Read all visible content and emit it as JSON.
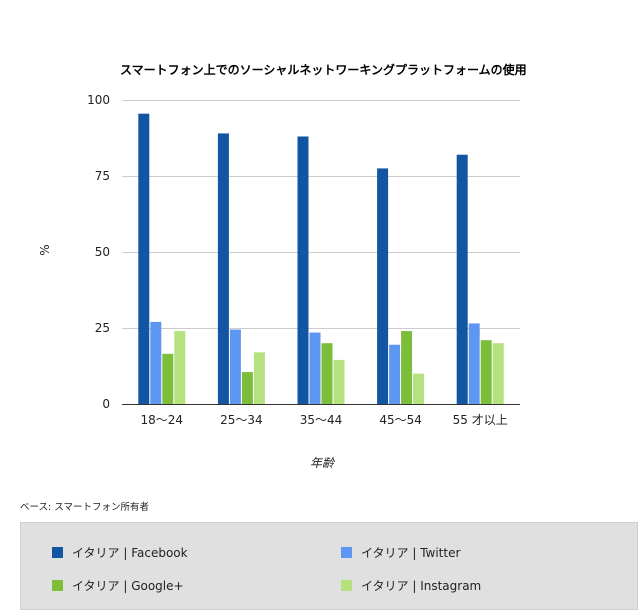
{
  "chart_data": {
    "type": "bar",
    "title": "スマートフォン上でのソーシャルネットワーキングプラットフォームの使用",
    "xlabel": "年齢",
    "ylabel": "%",
    "ylim": [
      0,
      100
    ],
    "yticks": [
      0,
      25,
      50,
      75,
      100
    ],
    "grid": true,
    "legend_position": "bottom",
    "categories": [
      "18〜24",
      "25〜34",
      "35〜44",
      "45〜54",
      "55 才以上"
    ],
    "series": [
      {
        "name": "イタリア | Facebook",
        "color": "#1155a3",
        "values": [
          95.5,
          89,
          88,
          77.5,
          82
        ]
      },
      {
        "name": "イタリア | Twitter",
        "color": "#5e97f2",
        "values": [
          27,
          24.5,
          23.5,
          19.5,
          26.5
        ]
      },
      {
        "name": "イタリア | Google+",
        "color": "#7cbd3a",
        "values": [
          16.5,
          10.5,
          20,
          24,
          21
        ]
      },
      {
        "name": "イタリア | Instagram",
        "color": "#b5e27f",
        "values": [
          24,
          17,
          14.5,
          10,
          20
        ]
      }
    ]
  },
  "footnote": "ベース: スマートフォン所有者"
}
